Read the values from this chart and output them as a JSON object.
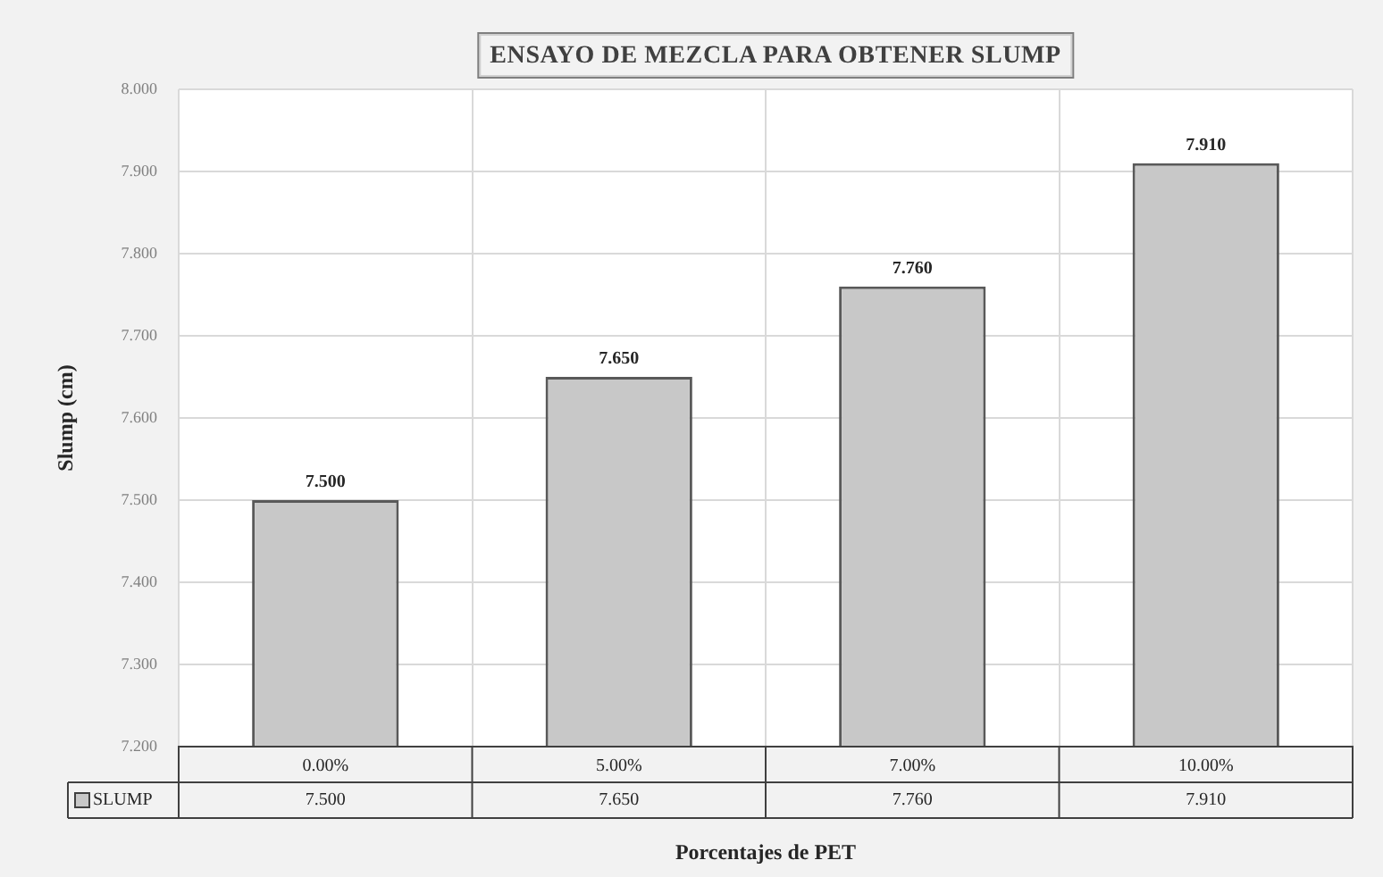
{
  "chart_data": {
    "type": "bar",
    "title": "ENSAYO DE MEZCLA PARA OBTENER SLUMP",
    "xlabel": "Porcentajes de PET",
    "ylabel": "Slump (cm)",
    "categories": [
      "0.00%",
      "5.00%",
      "7.00%",
      "10.00%"
    ],
    "series": [
      {
        "name": "SLUMP",
        "color": "#c8c8c8",
        "values": [
          7.5,
          7.65,
          7.76,
          7.91
        ],
        "value_labels": [
          "7.500",
          "7.650",
          "7.760",
          "7.910"
        ]
      }
    ],
    "ylim": [
      7.2,
      8.0
    ],
    "yticks": [
      {
        "value": 7.2,
        "label": "7.200"
      },
      {
        "value": 7.3,
        "label": "7.300"
      },
      {
        "value": 7.4,
        "label": "7.400"
      },
      {
        "value": 7.5,
        "label": "7.500"
      },
      {
        "value": 7.6,
        "label": "7.600"
      },
      {
        "value": 7.7,
        "label": "7.700"
      },
      {
        "value": 7.8,
        "label": "7.800"
      },
      {
        "value": 7.9,
        "label": "7.900"
      },
      {
        "value": 8.0,
        "label": "8.000"
      }
    ],
    "grid": true,
    "legend": "bottom left"
  }
}
